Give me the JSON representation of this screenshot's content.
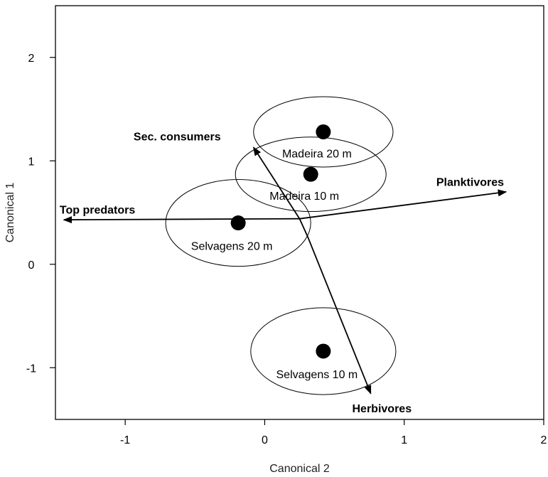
{
  "chart_data": {
    "type": "scatter",
    "xlabel": "Canonical 2",
    "ylabel": "Canonical 1",
    "xlim": [
      -1.5,
      2.0
    ],
    "ylim": [
      -1.5,
      2.5
    ],
    "x_ticks": [
      -1,
      0,
      1,
      2
    ],
    "y_ticks": [
      -1,
      0,
      1,
      2
    ],
    "x_tick_labels": [
      "-1",
      "0",
      "1",
      "2"
    ],
    "y_tick_labels": [
      "-1",
      "0",
      "1",
      "2"
    ],
    "grid": false,
    "legend": "none",
    "groups": [
      {
        "label": "Madeira 20 m",
        "x": 0.42,
        "y": 1.28,
        "rx": 0.5,
        "ry": 0.34,
        "label_pos": "above"
      },
      {
        "label": "Madeira 10 m",
        "x": 0.33,
        "y": 0.87,
        "rx": 0.54,
        "ry": 0.36,
        "label_pos": "above"
      },
      {
        "label": "Selvagens 20 m",
        "x": -0.19,
        "y": 0.4,
        "rx": 0.52,
        "ry": 0.42,
        "label_pos": "below"
      },
      {
        "label": "Selvagens 10 m",
        "x": 0.42,
        "y": -0.84,
        "rx": 0.52,
        "ry": 0.42,
        "label_pos": "below"
      }
    ],
    "vectors": [
      {
        "label": "Top predators",
        "path": [
          [
            0.25,
            0.44
          ],
          [
            -1.44,
            0.43
          ]
        ]
      },
      {
        "label": "Planktivores",
        "path": [
          [
            0.25,
            0.44
          ],
          [
            1.73,
            0.7
          ]
        ]
      },
      {
        "label": "Sec. consumers",
        "path": [
          [
            0.25,
            0.44
          ],
          [
            -0.08,
            1.13
          ]
        ]
      },
      {
        "label": "Herbivores",
        "path": [
          [
            0.25,
            0.44
          ],
          [
            0.31,
            0.26
          ],
          [
            0.76,
            -1.25
          ]
        ]
      }
    ],
    "vector_label_anchors": [
      {
        "label": "Top predators",
        "x": -1.47,
        "y": 0.53,
        "anchor": "start"
      },
      {
        "label": "Planktivores",
        "x": 1.23,
        "y": 0.8,
        "anchor": "start"
      },
      {
        "label": "Sec. consumers",
        "x": -0.94,
        "y": 1.24,
        "anchor": "start"
      },
      {
        "label": "Herbivores",
        "x": 0.84,
        "y": -1.39,
        "anchor": "middle"
      }
    ],
    "colors": {
      "ink": "#000000",
      "background": "#ffffff"
    }
  }
}
